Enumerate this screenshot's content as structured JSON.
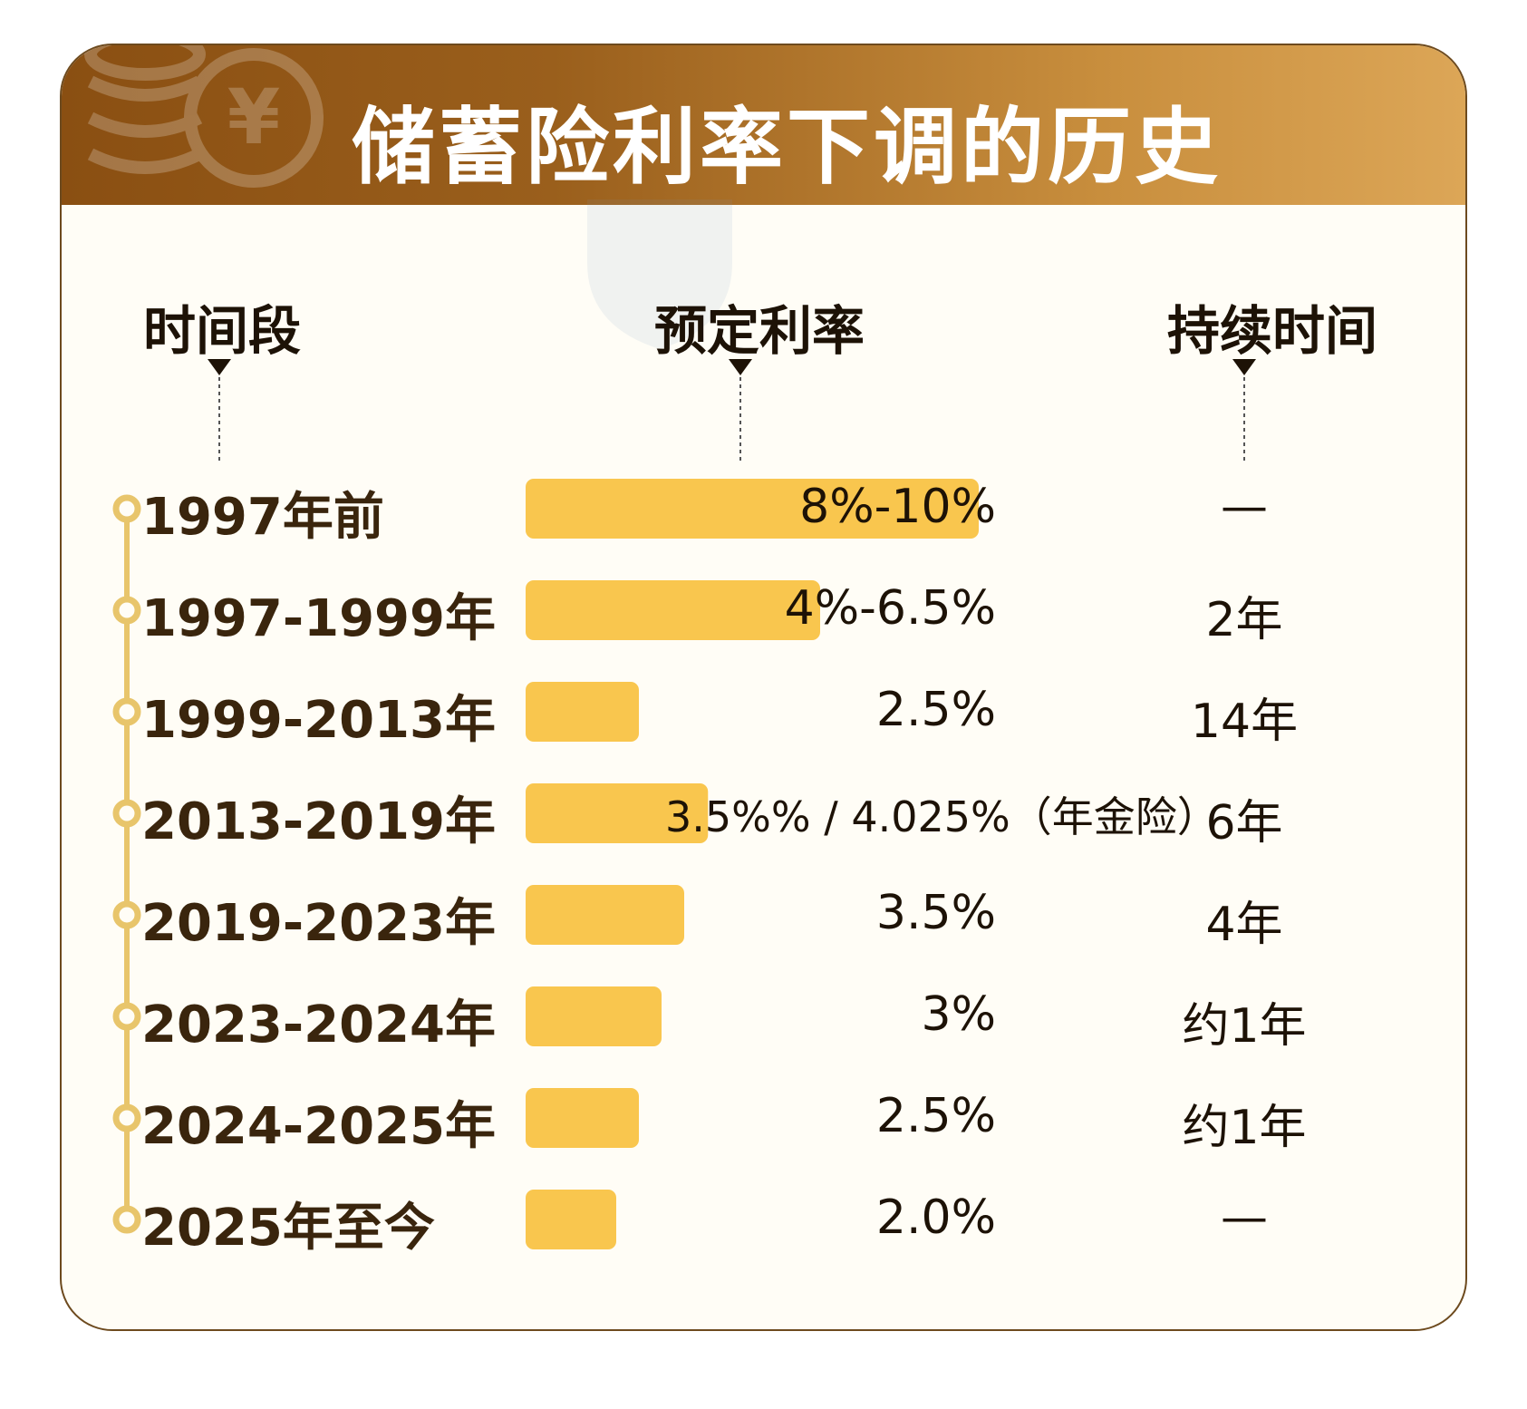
{
  "title": "储蓄险利率下调的历史",
  "columns": {
    "period": "时间段",
    "rate": "预定利率",
    "duration": "持续时间"
  },
  "chart_data": {
    "type": "bar",
    "orientation": "horizontal",
    "categories": [
      "1997年前",
      "1997-1999年",
      "1999-2013年",
      "2013-2019年",
      "2019-2023年",
      "2023-2024年",
      "2024-2025年",
      "2025年至今"
    ],
    "values": [
      10,
      6.5,
      2.5,
      4.025,
      3.5,
      3,
      2.5,
      2.0
    ],
    "value_labels": [
      "8%-10%",
      "4%-6.5%",
      "2.5%",
      "3.5%% / 4.025%（年金险）",
      "3.5%",
      "3%",
      "2.5%",
      "2.0%"
    ],
    "durations": [
      "—",
      "2年",
      "14年",
      "6年",
      "4年",
      "约1年",
      "约1年",
      "—"
    ],
    "bar_color": "#f9c64e",
    "grid": false
  },
  "colors": {
    "header_start": "#8a4f12",
    "header_end": "#dca657",
    "bar": "#f9c64e",
    "timeline": "#e8c56b",
    "text_dark": "#3a250d"
  },
  "icons": {
    "header_decoration": "yuan-coin-icon"
  }
}
